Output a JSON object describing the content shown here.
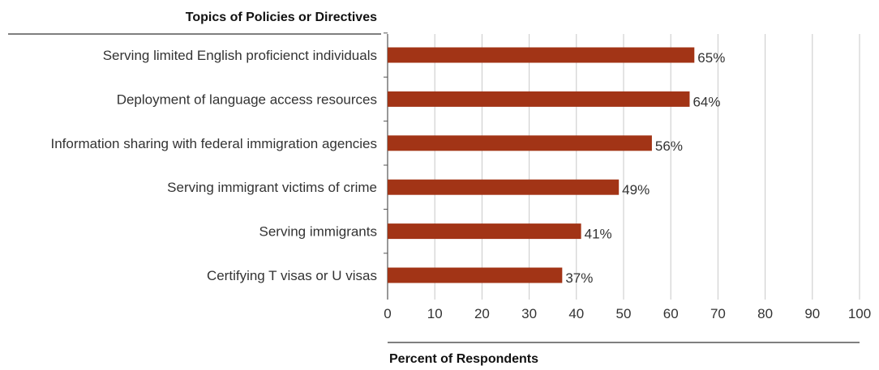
{
  "chart_data": {
    "type": "bar",
    "orientation": "horizontal",
    "categories": [
      "Serving limited English proficienct individuals",
      "Deployment of language access resources",
      "Information sharing with federal immigration agencies",
      "Serving immigrant victims of crime",
      "Serving immigrants",
      "Certifying T visas or U visas"
    ],
    "values": [
      65,
      64,
      56,
      49,
      41,
      37
    ],
    "data_labels": [
      "65%",
      "64%",
      "56%",
      "49%",
      "41%",
      "37%"
    ],
    "ylabel": "Topics of Policies or Directives",
    "xlabel": "Percent of Respondents",
    "xlim": [
      0,
      100
    ],
    "xticks": [
      0,
      10,
      20,
      30,
      40,
      50,
      60,
      70,
      80,
      90,
      100
    ],
    "xtick_labels": [
      "0",
      "10",
      "20",
      "30",
      "40",
      "50",
      "60",
      "70",
      "80",
      "90",
      "100"
    ],
    "grid": "vertical",
    "bar_color": "#a23416",
    "grid_color": "#c8c8c8"
  }
}
